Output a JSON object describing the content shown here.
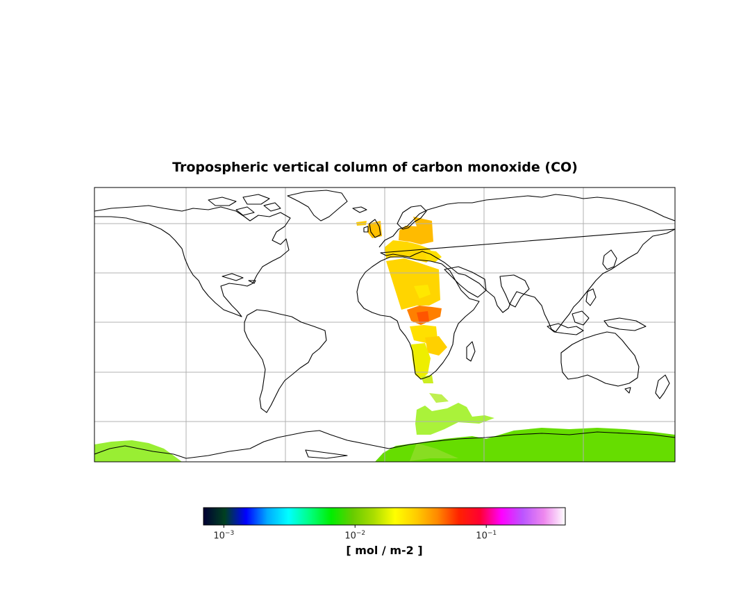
{
  "title": "Tropospheric vertical column of carbon monoxide (CO)",
  "colorbar": {
    "label": "[ mol / m-2 ]",
    "scale": "log",
    "range": [
      0.0007,
      0.4
    ],
    "ticks": [
      {
        "base": "10",
        "exp": "−3",
        "value": 0.001
      },
      {
        "base": "10",
        "exp": "−2",
        "value": 0.01
      },
      {
        "base": "10",
        "exp": "−1",
        "value": 0.1
      }
    ],
    "colormap": [
      "#000033",
      "#004020",
      "#0000ff",
      "#00aaff",
      "#00ffff",
      "#00ff80",
      "#00ee00",
      "#66cc00",
      "#aadd00",
      "#ffff00",
      "#ffcc00",
      "#ff8800",
      "#ff2200",
      "#ff0033",
      "#ff00ff",
      "#bb55ff",
      "#ee88ee",
      "#ffffff"
    ]
  },
  "map": {
    "projection": "PlateCarree",
    "extent_lon": [
      -180,
      180
    ],
    "extent_lat": [
      -90,
      90
    ],
    "gridlines": true,
    "coastline_color": "#000000",
    "grid_color": "#b0b0b0"
  }
}
